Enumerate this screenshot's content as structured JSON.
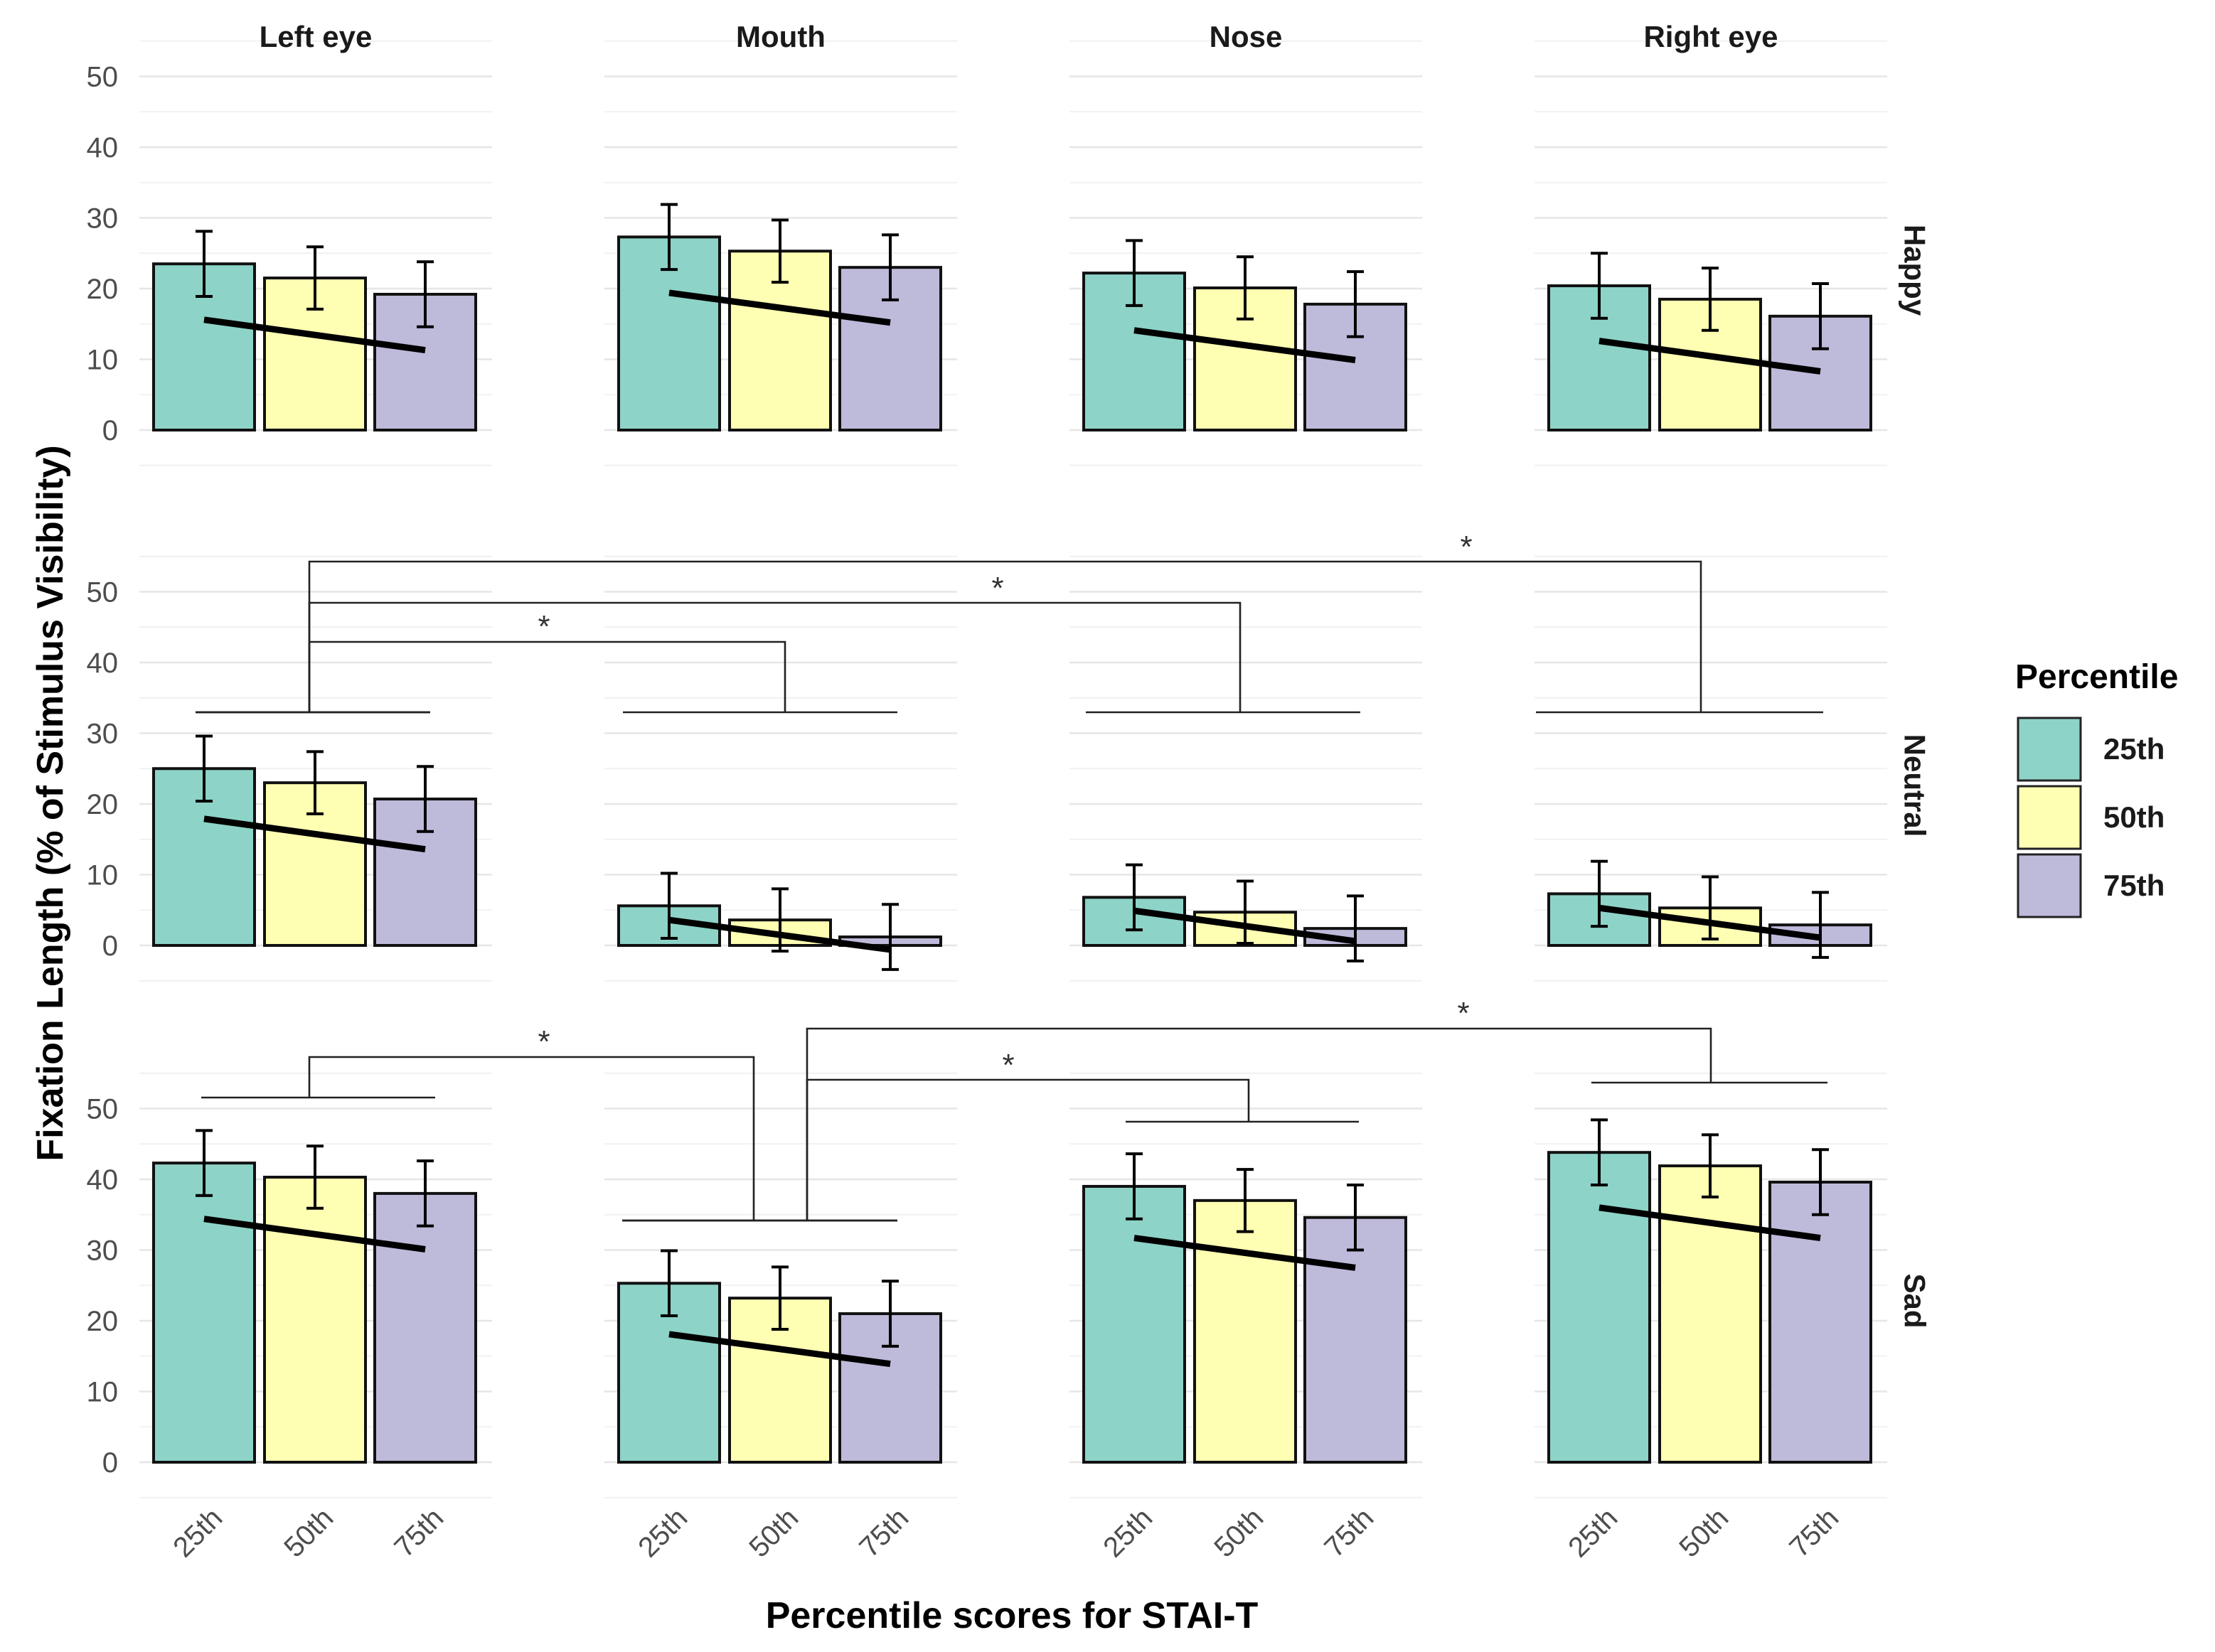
{
  "chart_data": {
    "type": "bar",
    "xlabel": "Percentile scores for STAI-T",
    "ylabel": "Fixation Length (% of Stimulus Visibility)",
    "ylim": [
      0,
      50
    ],
    "yticks": [
      0,
      10,
      20,
      30,
      40,
      50
    ],
    "categories": [
      "25th",
      "50th",
      "75th"
    ],
    "facet_columns": [
      "Left eye",
      "Mouth",
      "Nose",
      "Right eye"
    ],
    "facet_rows": [
      "Happy",
      "Neutral",
      "Sad"
    ],
    "legend": {
      "title": "Percentile",
      "position": "right",
      "entries": [
        {
          "label": "25th",
          "color": "#8dd3c7"
        },
        {
          "label": "50th",
          "color": "#ffffb3"
        },
        {
          "label": "75th",
          "color": "#bebada"
        }
      ]
    },
    "panels": [
      {
        "row": "Happy",
        "col": "Left eye",
        "values": [
          23.5,
          21.5,
          19.2
        ],
        "err": [
          4.6,
          4.4,
          4.6
        ],
        "trend": [
          15.6,
          11.3
        ]
      },
      {
        "row": "Happy",
        "col": "Mouth",
        "values": [
          27.3,
          25.3,
          23.0
        ],
        "err": [
          4.6,
          4.4,
          4.6
        ],
        "trend": [
          19.4,
          15.2
        ]
      },
      {
        "row": "Happy",
        "col": "Nose",
        "values": [
          22.2,
          20.1,
          17.8
        ],
        "err": [
          4.6,
          4.4,
          4.6
        ],
        "trend": [
          14.1,
          9.9
        ]
      },
      {
        "row": "Happy",
        "col": "Right eye",
        "values": [
          20.4,
          18.5,
          16.1
        ],
        "err": [
          4.6,
          4.4,
          4.6
        ],
        "trend": [
          12.6,
          8.3
        ]
      },
      {
        "row": "Neutral",
        "col": "Left eye",
        "values": [
          25.0,
          23.0,
          20.7
        ],
        "err": [
          4.6,
          4.4,
          4.6
        ],
        "trend": [
          17.9,
          13.6
        ]
      },
      {
        "row": "Neutral",
        "col": "Mouth",
        "values": [
          5.6,
          3.6,
          1.2
        ],
        "err": [
          4.6,
          4.4,
          4.6
        ],
        "trend": [
          3.6,
          -0.6
        ]
      },
      {
        "row": "Neutral",
        "col": "Nose",
        "values": [
          6.8,
          4.7,
          2.4
        ],
        "err": [
          4.6,
          4.4,
          4.6
        ],
        "trend": [
          4.9,
          0.6
        ]
      },
      {
        "row": "Neutral",
        "col": "Right eye",
        "values": [
          7.3,
          5.3,
          2.9
        ],
        "err": [
          4.6,
          4.4,
          4.6
        ],
        "trend": [
          5.3,
          1.1
        ]
      },
      {
        "row": "Sad",
        "col": "Left eye",
        "values": [
          42.3,
          40.3,
          38.0
        ],
        "err": [
          4.6,
          4.4,
          4.6
        ],
        "trend": [
          34.4,
          30.1
        ]
      },
      {
        "row": "Sad",
        "col": "Mouth",
        "values": [
          25.3,
          23.2,
          21.0
        ],
        "err": [
          4.6,
          4.4,
          4.6
        ],
        "trend": [
          18.1,
          13.9
        ]
      },
      {
        "row": "Sad",
        "col": "Nose",
        "values": [
          39.0,
          37.0,
          34.6
        ],
        "err": [
          4.6,
          4.4,
          4.6
        ],
        "trend": [
          31.7,
          27.5
        ]
      },
      {
        "row": "Sad",
        "col": "Right eye",
        "values": [
          43.8,
          41.9,
          39.6
        ],
        "err": [
          4.6,
          4.4,
          4.6
        ],
        "trend": [
          36.0,
          31.7
        ]
      }
    ],
    "significance": [
      {
        "row": "Neutral",
        "from": "Left eye",
        "to": "Right eye",
        "label": "*"
      },
      {
        "row": "Neutral",
        "from": "Left eye",
        "to": "Nose",
        "label": "*"
      },
      {
        "row": "Neutral",
        "from": "Left eye",
        "to": "Mouth",
        "label": "*"
      },
      {
        "row": "Sad",
        "from": "Left eye",
        "to": "Mouth",
        "label": "*"
      },
      {
        "row": "Sad",
        "from": "Mouth",
        "to": "Right eye",
        "label": "*"
      },
      {
        "row": "Sad",
        "from": "Mouth",
        "to": "Nose",
        "label": "*"
      }
    ]
  }
}
